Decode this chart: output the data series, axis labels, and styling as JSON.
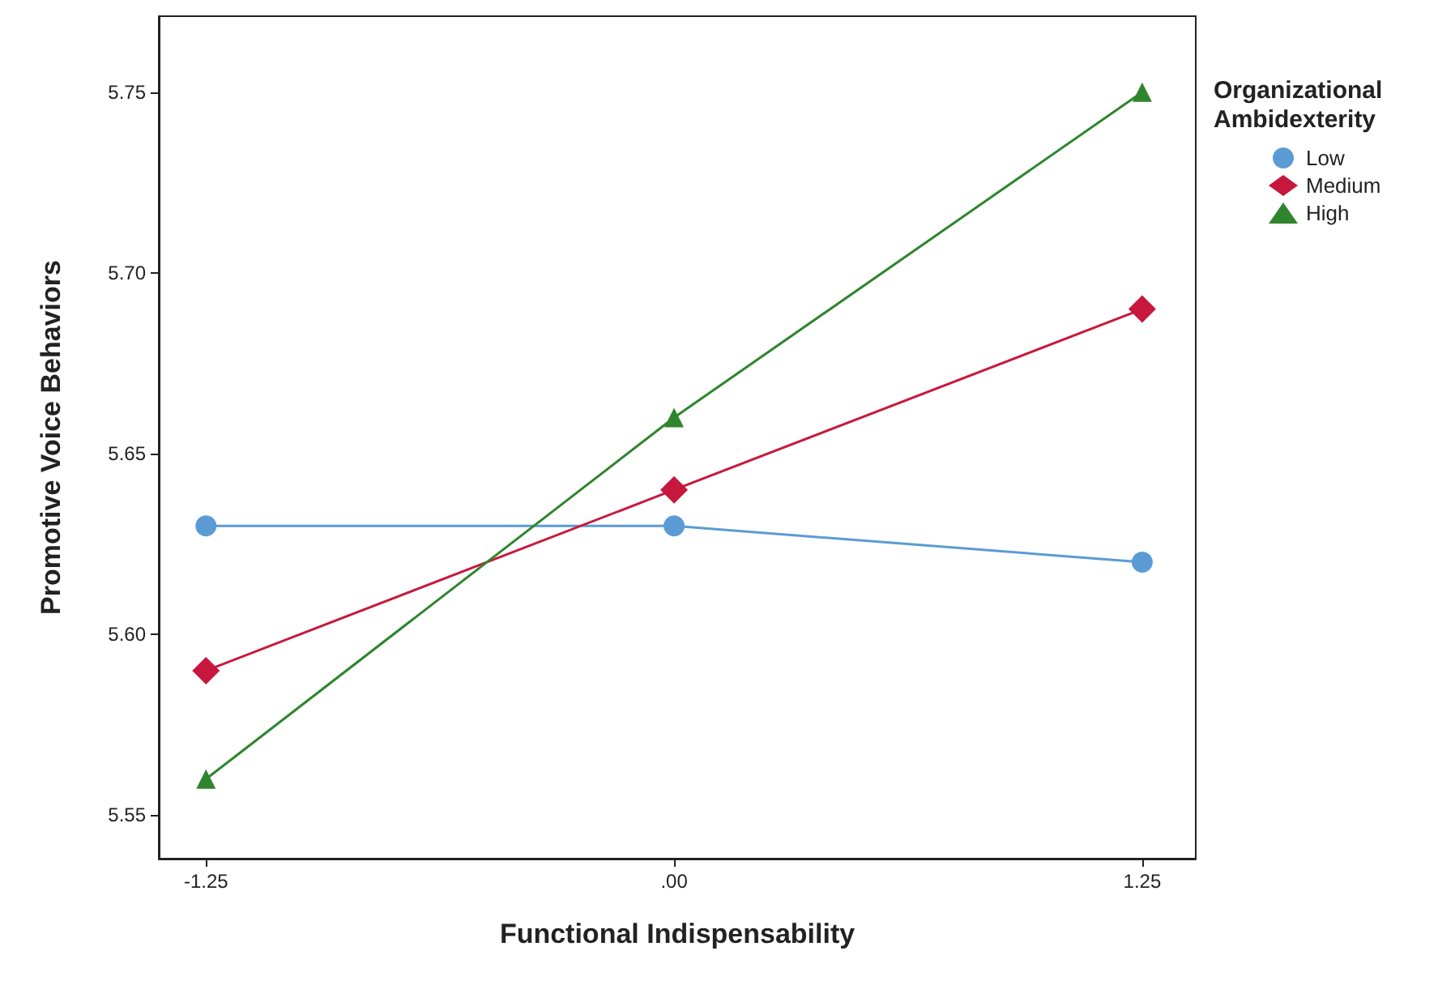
{
  "chart_data": {
    "type": "line",
    "xlabel": "Functional Indispensability",
    "ylabel": "Promotive Voice Behaviors",
    "legend_title": "Organizational Ambidexterity",
    "x": [
      -1.25,
      0,
      1.25
    ],
    "series": [
      {
        "name": "Low",
        "color": "#5b9bd5",
        "marker": "circle",
        "values": [
          5.63,
          5.63,
          5.62
        ]
      },
      {
        "name": "Medium",
        "color": "#c8173c",
        "marker": "diamond",
        "values": [
          5.59,
          5.64,
          5.69
        ]
      },
      {
        "name": "High",
        "color": "#2e852e",
        "marker": "triangle",
        "values": [
          5.56,
          5.66,
          5.75
        ]
      }
    ],
    "xlim": [
      -1.376,
      1.393
    ],
    "ylim": [
      5.538,
      5.771
    ],
    "xticks": [
      {
        "value": -1.25,
        "label": "-1.25"
      },
      {
        "value": 0,
        "label": ".00"
      },
      {
        "value": 1.25,
        "label": "1.25"
      }
    ],
    "yticks": [
      5.55,
      {
        "value": 5.6,
        "label": "5.60"
      },
      5.65,
      {
        "value": 5.7,
        "label": "5.70"
      },
      5.75
    ],
    "grid": false,
    "legend": "top right",
    "line_style": "solid"
  }
}
